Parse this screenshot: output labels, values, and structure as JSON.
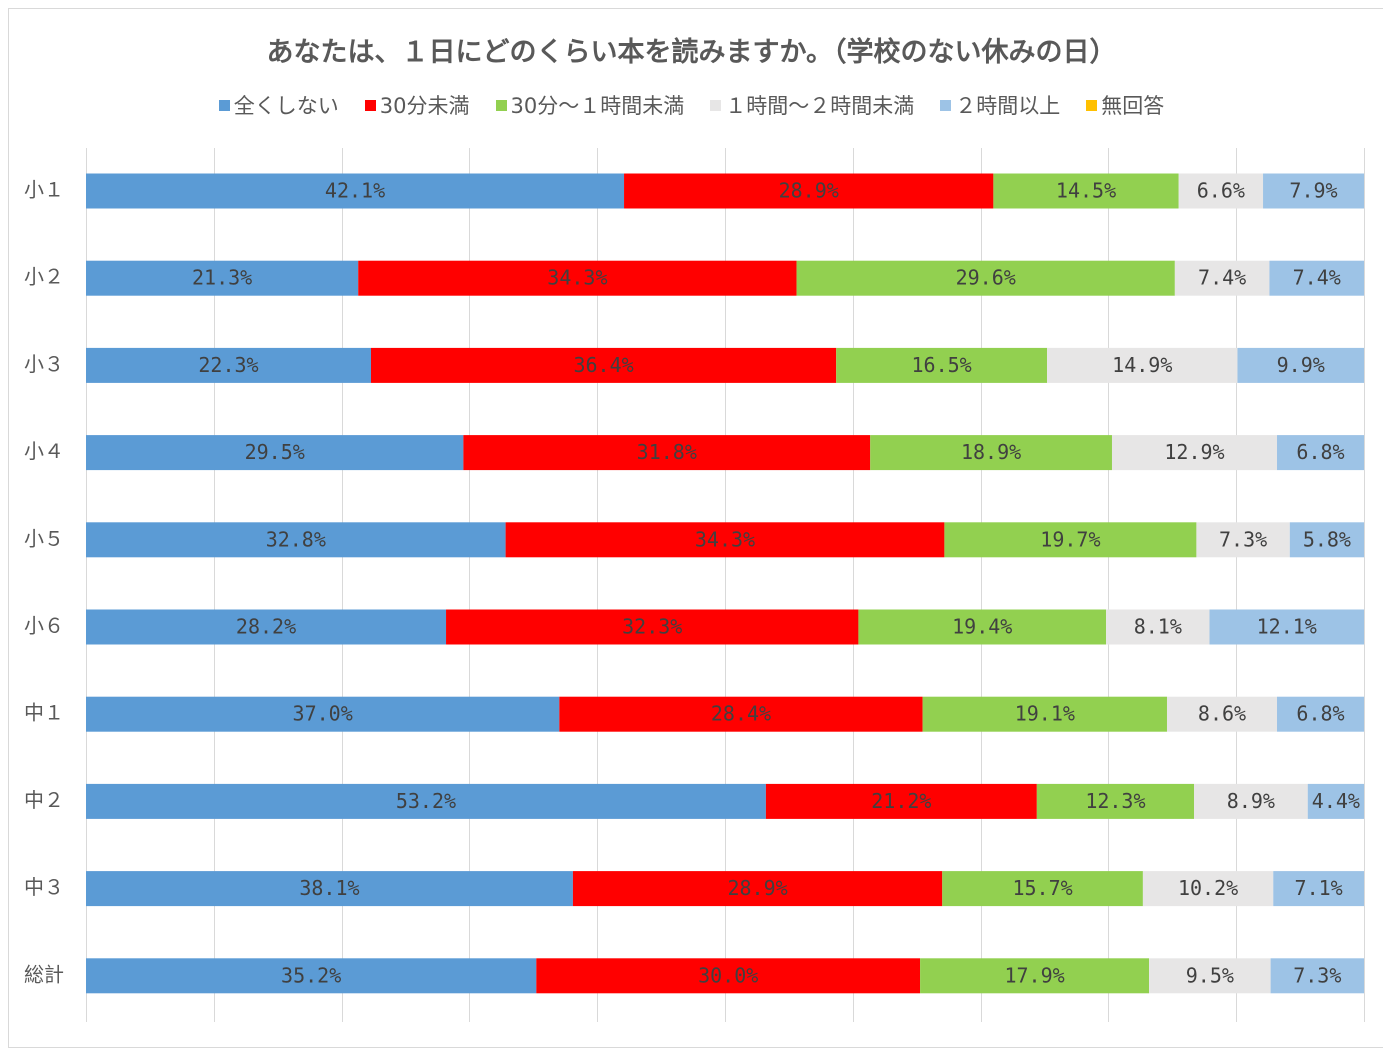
{
  "chart_data": {
    "type": "bar",
    "orientation": "horizontal",
    "stacked": true,
    "title": "あなたは、１日にどのくらい本を読みますか。（学校のない休みの日）",
    "xlabel": "",
    "ylabel": "",
    "xlim": [
      0,
      100
    ],
    "grid": true,
    "legend_position": "top",
    "categories": [
      "小１",
      "小２",
      "小３",
      "小４",
      "小５",
      "小６",
      "中１",
      "中２",
      "中３",
      "総計"
    ],
    "series": [
      {
        "name": "全くしない",
        "color": "#5b9bd5",
        "values": [
          42.1,
          21.3,
          22.3,
          29.5,
          32.8,
          28.2,
          37.0,
          53.2,
          38.1,
          35.2
        ],
        "labels": [
          "42.1%",
          "21.3%",
          "22.3%",
          "29.5%",
          "32.8%",
          "28.2%",
          "37.0%",
          "53.2%",
          "38.1%",
          "35.2%"
        ]
      },
      {
        "name": "30分未満",
        "color": "#ff0000",
        "values": [
          28.9,
          34.3,
          36.4,
          31.8,
          34.3,
          32.3,
          28.4,
          21.2,
          28.9,
          30.0
        ],
        "labels": [
          "28.9%",
          "34.3%",
          "36.4%",
          "31.8%",
          "34.3%",
          "32.3%",
          "28.4%",
          "21.2%",
          "28.9%",
          "30.0%"
        ]
      },
      {
        "name": "30分～１時間未満",
        "color": "#92d050",
        "values": [
          14.5,
          29.6,
          16.5,
          18.9,
          19.7,
          19.4,
          19.1,
          12.3,
          15.7,
          17.9
        ],
        "labels": [
          "14.5%",
          "29.6%",
          "16.5%",
          "18.9%",
          "19.7%",
          "19.4%",
          "19.1%",
          "12.3%",
          "15.7%",
          "17.9%"
        ]
      },
      {
        "name": "１時間～２時間未満",
        "color": "#e7e6e6",
        "values": [
          6.6,
          7.4,
          14.9,
          12.9,
          7.3,
          8.1,
          8.6,
          8.9,
          10.2,
          9.5
        ],
        "labels": [
          "6.6%",
          "7.4%",
          "14.9%",
          "12.9%",
          "7.3%",
          "8.1%",
          "8.6%",
          "8.9%",
          "10.2%",
          "9.5%"
        ]
      },
      {
        "name": "２時間以上",
        "color": "#9dc3e6",
        "values": [
          7.9,
          7.4,
          9.9,
          6.8,
          5.8,
          12.1,
          6.8,
          4.4,
          7.1,
          7.3
        ],
        "labels": [
          "7.9%",
          "7.4%",
          "9.9%",
          "6.8%",
          "5.8%",
          "12.1%",
          "6.8%",
          "4.4%",
          "7.1%",
          "7.3%"
        ]
      },
      {
        "name": "無回答",
        "color": "#ffc000",
        "values": [
          0,
          0,
          0,
          0,
          0,
          0,
          0,
          0,
          0,
          0
        ],
        "labels": [
          "",
          "",
          "",
          "",
          "",
          "",
          "",
          "",
          "",
          ""
        ]
      }
    ]
  }
}
